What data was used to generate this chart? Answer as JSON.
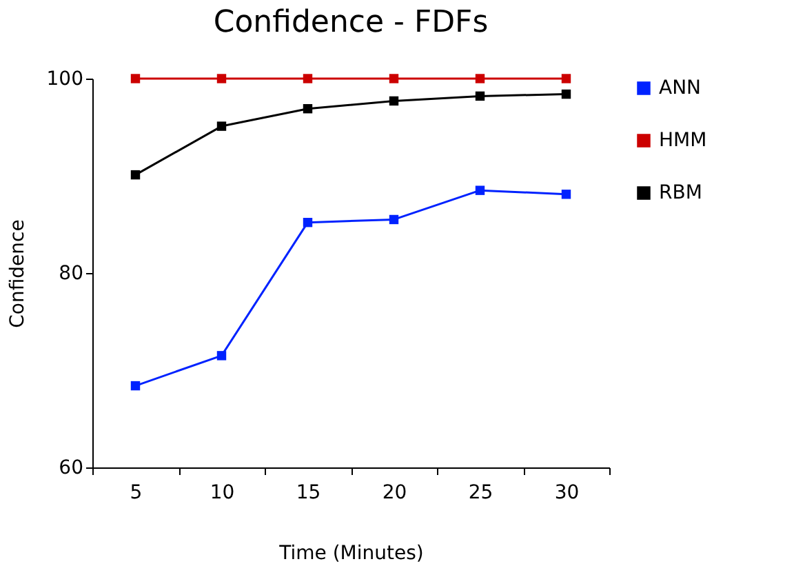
{
  "chart_data": {
    "type": "line",
    "title": "Confidence - FDFs",
    "xlabel": "Time (Minutes)",
    "ylabel": "Confidence",
    "categories": [
      "5",
      "10",
      "15",
      "20",
      "25",
      "30"
    ],
    "series": [
      {
        "name": "ANN",
        "color": "#0022ff",
        "values": [
          68.4,
          71.5,
          85.2,
          85.5,
          88.5,
          88.1
        ]
      },
      {
        "name": "HMM",
        "color": "#cc0000",
        "values": [
          100,
          100,
          100,
          100,
          100,
          100
        ]
      },
      {
        "name": "RBM",
        "color": "#000000",
        "values": [
          90.1,
          95.1,
          96.9,
          97.7,
          98.2,
          98.4
        ]
      }
    ],
    "ylim": [
      60,
      100
    ],
    "yticks": [
      60,
      80,
      100
    ],
    "grid": false,
    "legend": "right",
    "marker": "square",
    "line_style": "solid"
  }
}
